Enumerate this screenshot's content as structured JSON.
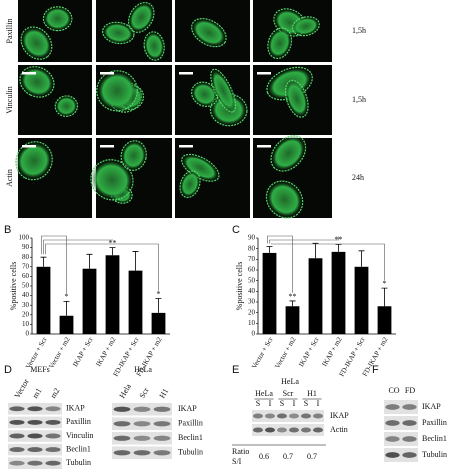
{
  "figure": {
    "row_labels": [
      "Paxillin",
      "Vinculin",
      "Actin"
    ],
    "time_labels": [
      "1,5h",
      "1,5h",
      "24h"
    ]
  },
  "chart_data": [
    {
      "type": "bar",
      "label": "B",
      "y_label": "%positive cells",
      "categories": [
        "Vector + Scr",
        "Vector + m2",
        "IKAP + Scr",
        "IKAP + m2",
        "FD-IKAP + Scr",
        "FD-IKAP + m2"
      ],
      "values": [
        70,
        19,
        68,
        82,
        66,
        22
      ],
      "errors": [
        10,
        15,
        15,
        8,
        20,
        15
      ],
      "annotations": [
        "*",
        "**",
        "*"
      ],
      "color": "#000000",
      "ylim": [
        0,
        100
      ],
      "yticks": [
        0,
        10,
        20,
        30,
        40,
        50,
        60,
        70,
        80,
        90,
        100
      ]
    },
    {
      "type": "bar",
      "label": "C",
      "y_label": "%positive cells",
      "categories": [
        "Vector + Scr",
        "Vector + m2",
        "IKAP + Scr",
        "IKAP + m2",
        "FD-IKAP + Scr",
        "FD-IKAP + m2"
      ],
      "values": [
        76,
        26,
        71,
        77,
        63,
        26
      ],
      "errors": [
        6,
        5,
        14,
        7,
        15,
        17
      ],
      "annotations": [
        "**",
        "**",
        "*"
      ],
      "color": "#000000",
      "ylim": [
        0,
        90
      ],
      "yticks": [
        0,
        10,
        20,
        30,
        40,
        50,
        60,
        70,
        80,
        90
      ]
    }
  ],
  "panel_d": {
    "label": "D",
    "mefs": {
      "title": "MEFs",
      "lanes": [
        "Vector",
        "m1",
        "m2"
      ],
      "rows": [
        "IKAP",
        "Paxillin",
        "Vinculin",
        "Beclin1",
        "Tubulin"
      ]
    },
    "hela": {
      "title": "HeLa",
      "lanes": [
        "Hela",
        "Scr",
        "H1"
      ],
      "rows": [
        "IKAP",
        "Paxillin",
        "Beclin1",
        "Tubulin"
      ]
    }
  },
  "panel_e": {
    "label": "E",
    "title": "HeLa",
    "groups": [
      "HeLa",
      "Scr",
      "H1"
    ],
    "lanes": [
      "S",
      "I",
      "S",
      "I",
      "S",
      "I"
    ],
    "rows": [
      "IKAP",
      "Actin"
    ],
    "ratio_label": [
      "Ratio",
      "S/I"
    ],
    "ratios": [
      0.6,
      0.7,
      0.7
    ]
  },
  "panel_f": {
    "label": "F",
    "lanes": [
      "CO",
      "FD"
    ],
    "rows": [
      "IKAP",
      "Paxillin",
      "Beclin1",
      "Tubulin"
    ]
  }
}
